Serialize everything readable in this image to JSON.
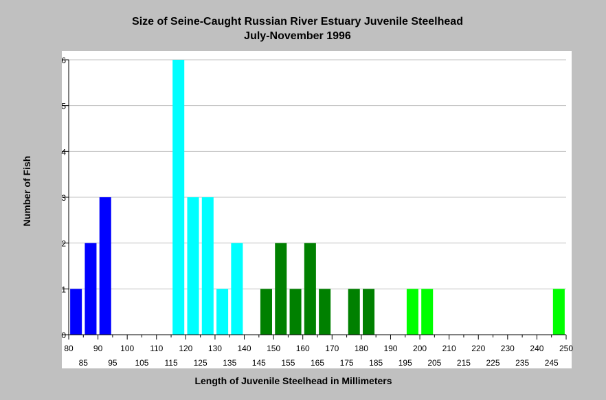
{
  "chart_data": {
    "type": "bar",
    "title": "Size of Seine-Caught Russian River Estuary Juvenile Steelhead",
    "subtitle": "July-November 1996",
    "xlabel": "Length of Juvenile Steelhead in Millimeters",
    "ylabel": "Number of Fish",
    "xlim": [
      80,
      250
    ],
    "ylim": [
      0,
      6
    ],
    "x_ticks_top": [
      "80",
      "90",
      "100",
      "110",
      "120",
      "130",
      "140",
      "150",
      "160",
      "170",
      "180",
      "190",
      "200",
      "210",
      "220",
      "230",
      "240",
      "250"
    ],
    "x_ticks_bottom": [
      "85",
      "95",
      "105",
      "115",
      "125",
      "135",
      "145",
      "155",
      "165",
      "175",
      "185",
      "195",
      "205",
      "215",
      "225",
      "235",
      "245"
    ],
    "y_ticks": [
      "0",
      "1",
      "2",
      "3",
      "4",
      "5",
      "6"
    ],
    "grid": true,
    "colors": {
      "blue": "#0000ff",
      "cyan": "#00ffff",
      "darkgreen": "#008000",
      "lime": "#00ff00",
      "plot_bg": "#ffffff",
      "page_bg": "#c0c0c0",
      "grid": "#c0c0c0"
    },
    "bars": [
      {
        "x": 85,
        "value": 1,
        "color": "blue"
      },
      {
        "x": 90,
        "value": 2,
        "color": "blue"
      },
      {
        "x": 95,
        "value": 3,
        "color": "blue"
      },
      {
        "x": 120,
        "value": 6,
        "color": "cyan"
      },
      {
        "x": 125,
        "value": 3,
        "color": "cyan"
      },
      {
        "x": 130,
        "value": 3,
        "color": "cyan"
      },
      {
        "x": 135,
        "value": 1,
        "color": "cyan"
      },
      {
        "x": 140,
        "value": 2,
        "color": "cyan"
      },
      {
        "x": 150,
        "value": 1,
        "color": "darkgreen"
      },
      {
        "x": 155,
        "value": 2,
        "color": "darkgreen"
      },
      {
        "x": 160,
        "value": 1,
        "color": "darkgreen"
      },
      {
        "x": 165,
        "value": 2,
        "color": "darkgreen"
      },
      {
        "x": 170,
        "value": 1,
        "color": "darkgreen"
      },
      {
        "x": 180,
        "value": 1,
        "color": "darkgreen"
      },
      {
        "x": 185,
        "value": 1,
        "color": "darkgreen"
      },
      {
        "x": 200,
        "value": 1,
        "color": "lime"
      },
      {
        "x": 205,
        "value": 1,
        "color": "lime"
      },
      {
        "x": 250,
        "value": 1,
        "color": "lime"
      }
    ]
  }
}
